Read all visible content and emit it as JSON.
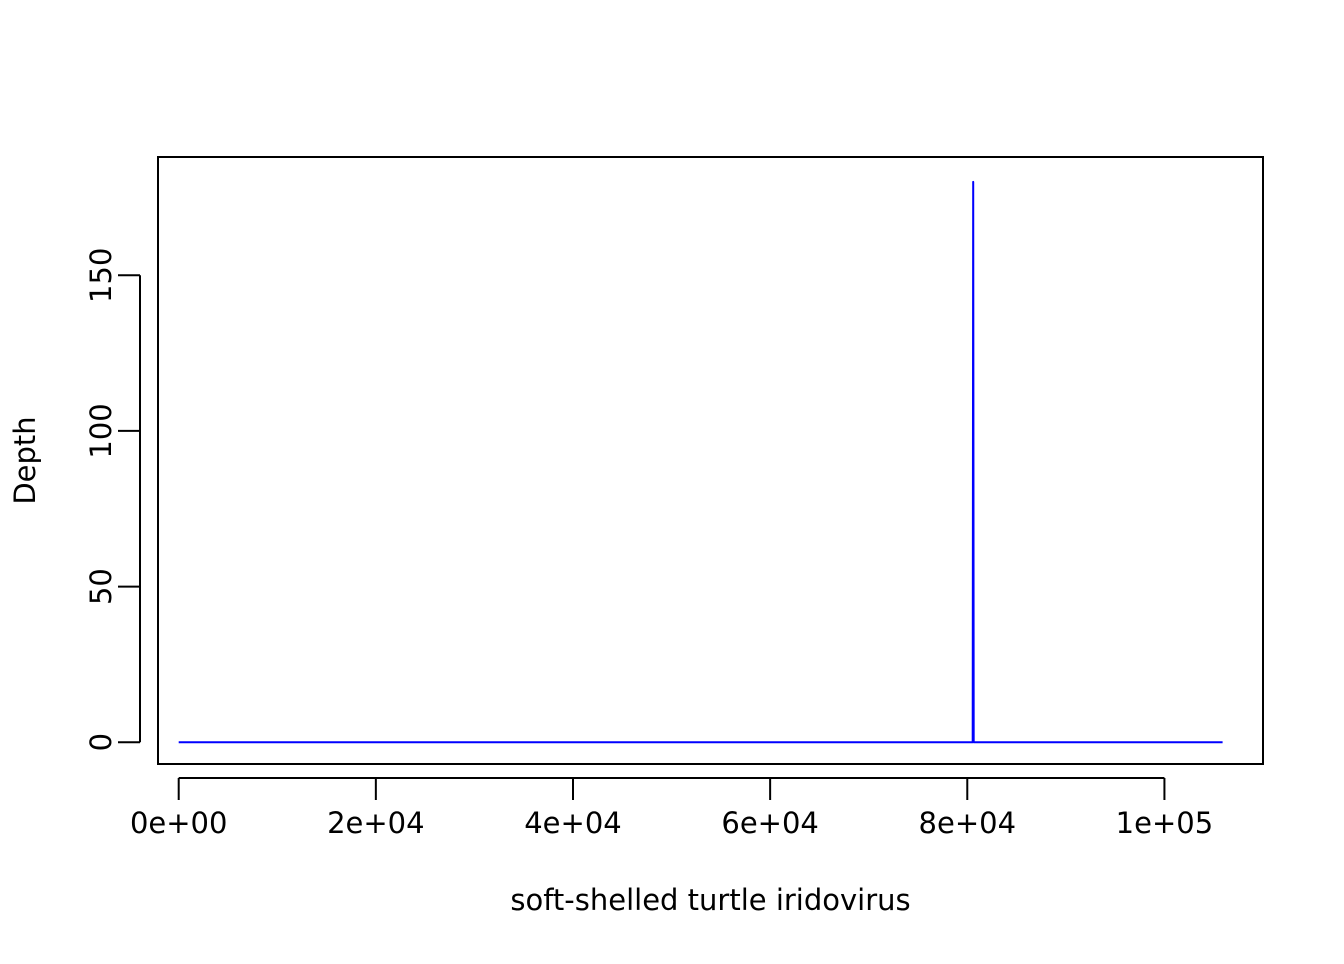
{
  "chart_data": {
    "type": "line",
    "title": "",
    "xlabel": "soft-shelled turtle iridovirus",
    "ylabel": "Depth",
    "xlim": [
      -2100,
      110000
    ],
    "ylim": [
      -7,
      188
    ],
    "x_ticks": [
      {
        "value": 0,
        "label": "0e+00"
      },
      {
        "value": 20000,
        "label": "2e+04"
      },
      {
        "value": 40000,
        "label": "4e+04"
      },
      {
        "value": 60000,
        "label": "6e+04"
      },
      {
        "value": 80000,
        "label": "8e+04"
      },
      {
        "value": 100000,
        "label": "1e+05"
      }
    ],
    "y_ticks": [
      {
        "value": 0,
        "label": "0"
      },
      {
        "value": 50,
        "label": "50"
      },
      {
        "value": 100,
        "label": "100"
      },
      {
        "value": 150,
        "label": "150"
      }
    ],
    "grid": false,
    "legend": "none",
    "series": [
      {
        "color": "#0000ff",
        "x": [
          0,
          80550,
          80600,
          80650,
          105900
        ],
        "y": [
          0,
          0,
          180,
          0,
          0
        ]
      }
    ]
  }
}
